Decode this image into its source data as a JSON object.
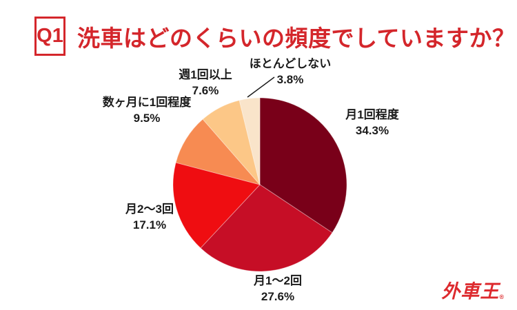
{
  "header": {
    "badge": "Q1",
    "title": "洗車はどのくらいの頻度でしていますか？"
  },
  "chart_data": {
    "type": "pie",
    "title": "洗車はどのくらいの頻度でしていますか？",
    "question_label": "Q1",
    "start_angle_deg": 0,
    "direction": "clockwise",
    "legend_position": "none",
    "labels_outside": true,
    "slices": [
      {
        "label": "月1回程度",
        "value": 34.3,
        "pct": "34.3%",
        "color": "#790019"
      },
      {
        "label": "月1～2回",
        "value": 27.6,
        "pct": "27.6%",
        "color": "#C60E26"
      },
      {
        "label": "月2～3回",
        "value": 17.1,
        "pct": "17.1%",
        "color": "#EF0D11"
      },
      {
        "label": "数ヶ月に1回程度",
        "value": 9.5,
        "pct": "9.5%",
        "color": "#F78B52"
      },
      {
        "label": "週1回以上",
        "value": 7.6,
        "pct": "7.6%",
        "color": "#FCC787"
      },
      {
        "label": "ほとんどしない",
        "value": 3.8,
        "pct": "3.8%",
        "color": "#F9E4CA"
      }
    ]
  },
  "footer": {
    "logo_text": "外車王",
    "registered_mark": "®"
  },
  "colors": {
    "accent_red": "#D4262B",
    "label_text": "#1B1B1B",
    "logo_red": "#DD2A2E",
    "background": "#FFFFFF"
  }
}
